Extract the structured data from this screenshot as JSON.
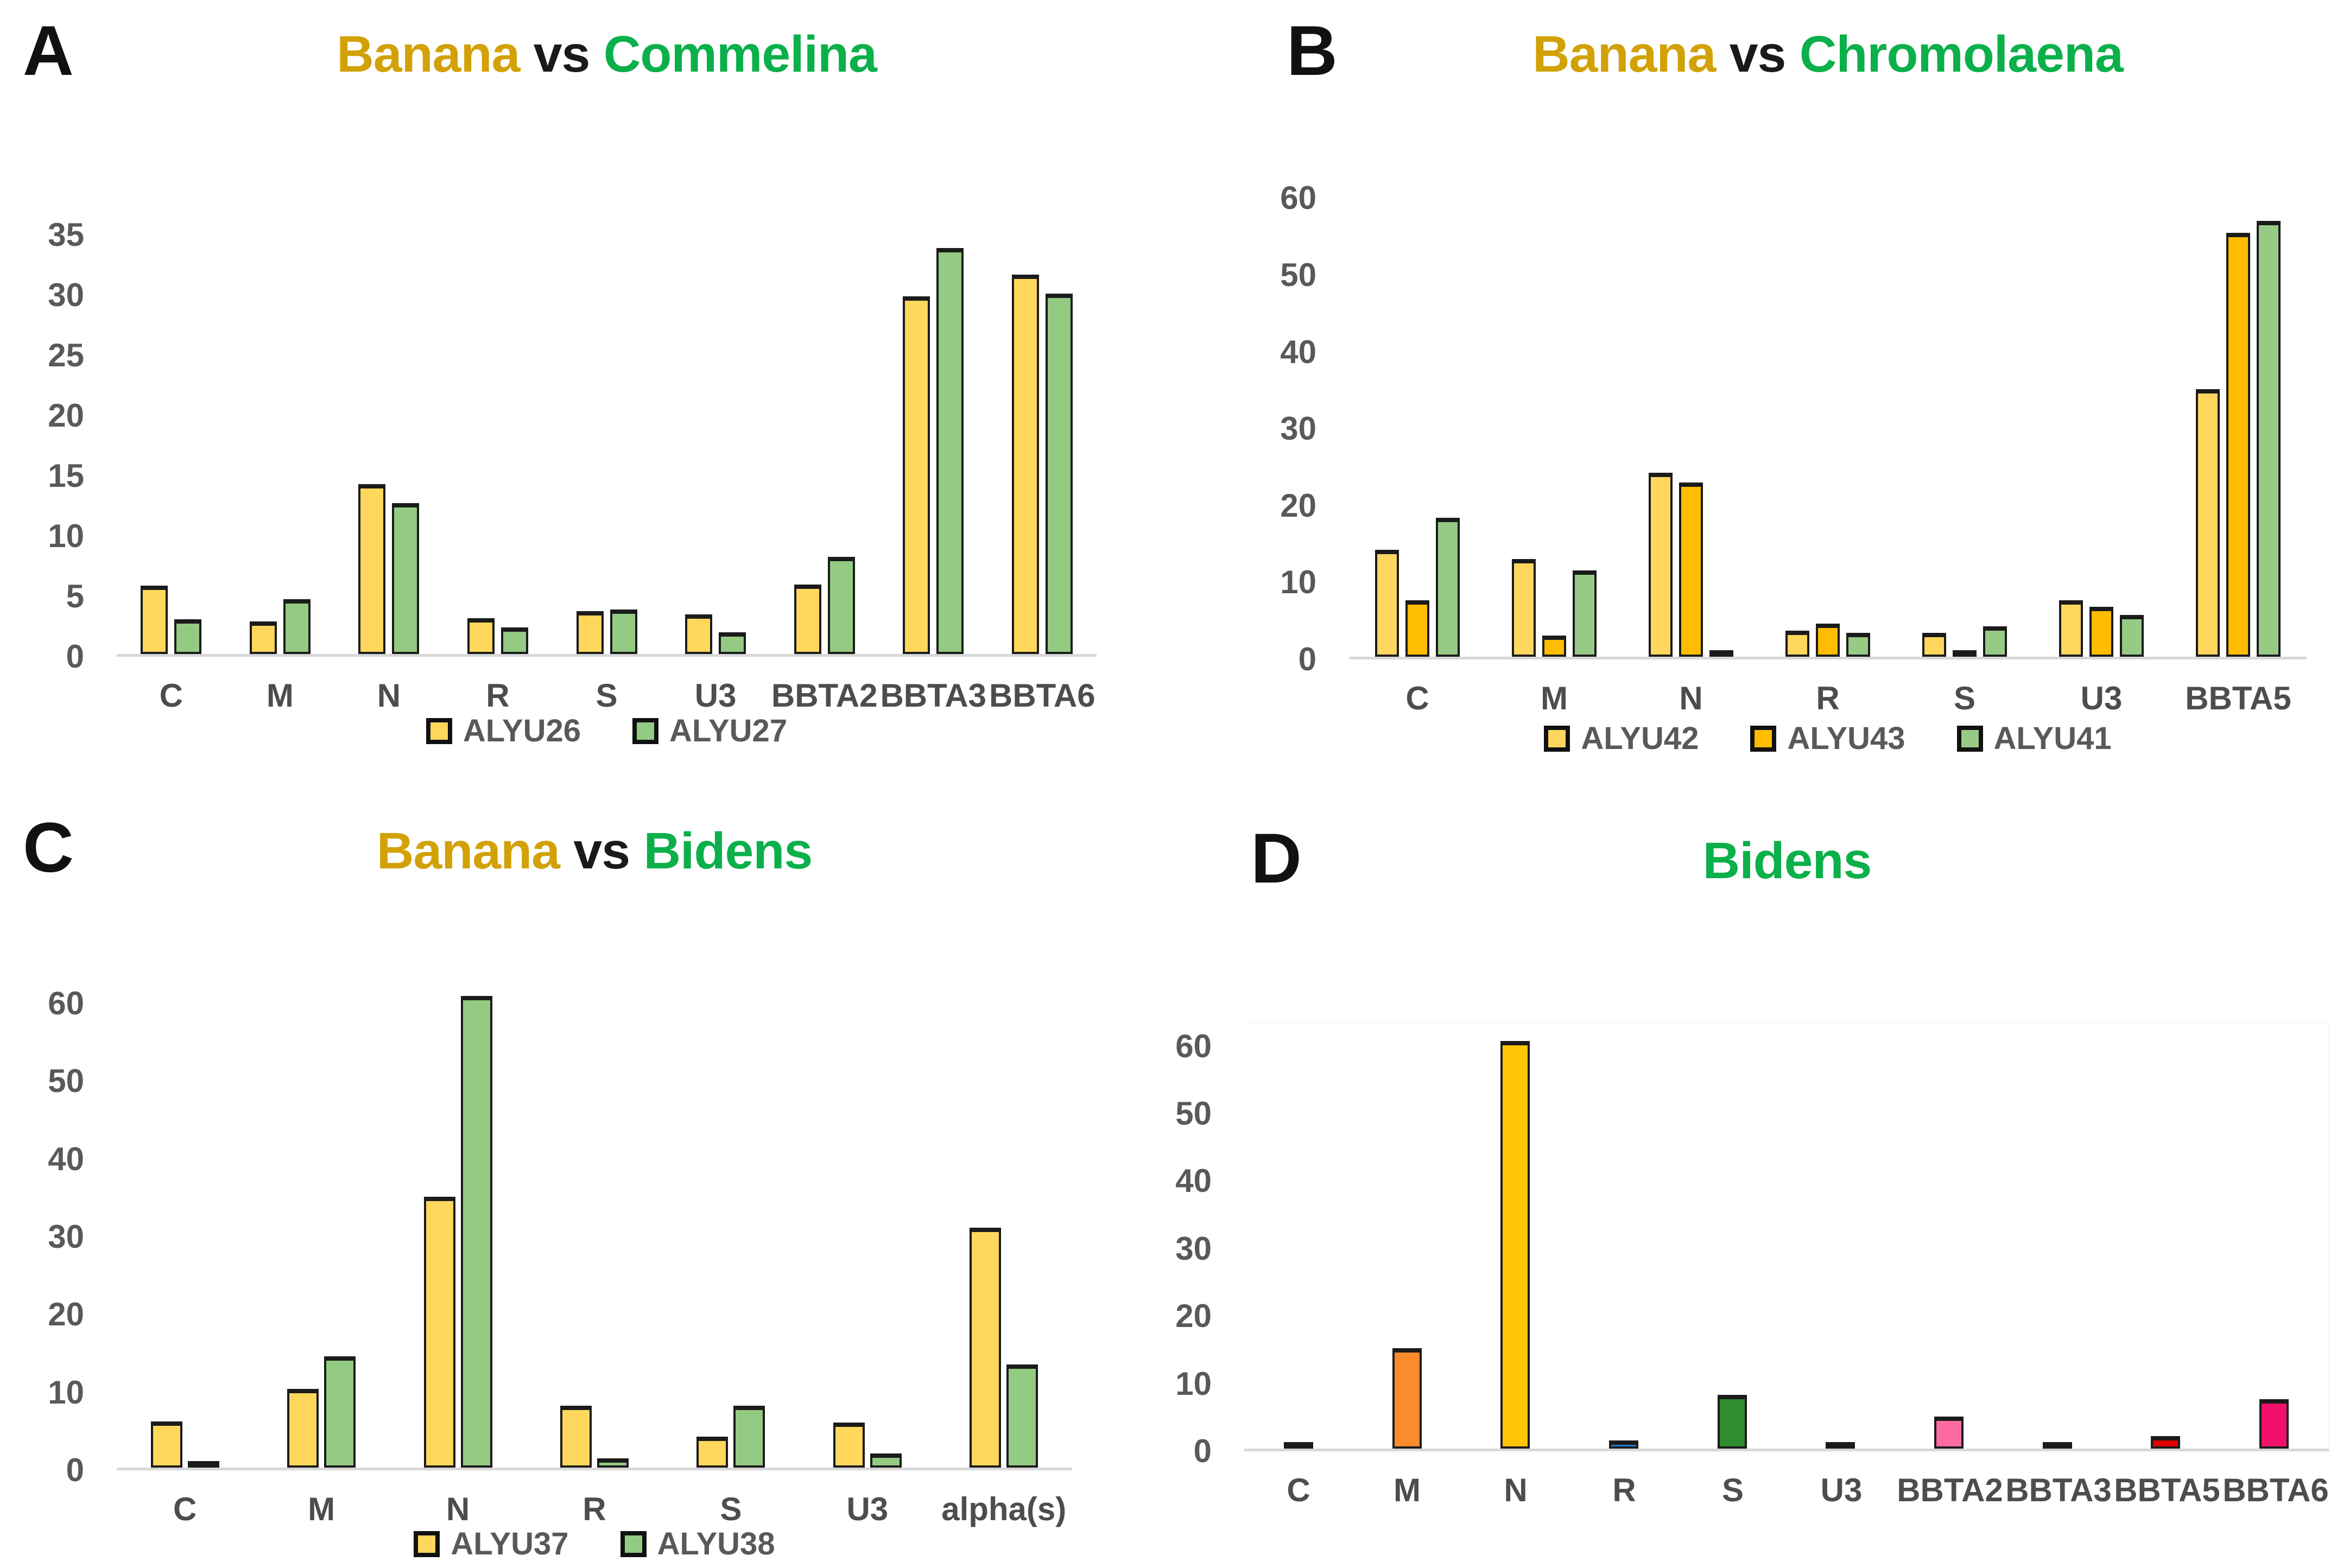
{
  "figure": {
    "background": "#FFFFFF",
    "axis_text_color": "#595959",
    "bar_outline_color": "#1B1B1B",
    "baseline_color": "#D8D8D8"
  },
  "panels": [
    {
      "label": "A",
      "title_parts": [
        {
          "text": "Banana",
          "color": "#D2A106"
        },
        {
          "text": " vs ",
          "color": "#1A1A1A"
        },
        {
          "text": "Commelina",
          "color": "#0CB04A"
        }
      ],
      "chart_data": {
        "type": "bar",
        "title": "Banana vs Commelina",
        "categories": [
          "C",
          "M",
          "N",
          "R",
          "S",
          "U3",
          "BBTA2",
          "BBTA3",
          "BBTA6"
        ],
        "series": [
          {
            "name": "ALYU26",
            "color": "#FFD75C",
            "values": [
              5.7,
              2.7,
              14.2,
              3.0,
              3.6,
              3.3,
              5.8,
              29.9,
              31.7
            ]
          },
          {
            "name": "ALYU27",
            "color": "#93CB82",
            "values": [
              2.9,
              4.6,
              12.6,
              2.2,
              3.7,
              1.8,
              8.1,
              33.9,
              30.1
            ]
          }
        ],
        "xlabel": "",
        "ylabel": "",
        "ylim": [
          0,
          35
        ],
        "ytick_step": 5,
        "y_draw_max": 36.5,
        "grid": false,
        "show_legend": true,
        "legend_position": "bottom"
      }
    },
    {
      "label": "B",
      "title_parts": [
        {
          "text": "Banana",
          "color": "#D2A106"
        },
        {
          "text": " vs ",
          "color": "#1A1A1A"
        },
        {
          "text": "Chromolaena",
          "color": "#0CB04A"
        }
      ],
      "chart_data": {
        "type": "bar",
        "title": "Banana vs Chromolaena",
        "categories": [
          "C",
          "M",
          "N",
          "R",
          "S",
          "U3",
          "BBTA5"
        ],
        "series": [
          {
            "name": "ALYU42",
            "color": "#FFD65E",
            "values": [
              14.0,
              12.8,
              24.1,
              3.4,
              3.1,
              7.4,
              35.0
            ]
          },
          {
            "name": "ALYU43",
            "color": "#FFBC00",
            "values": [
              7.4,
              2.8,
              22.8,
              4.3,
              0.8,
              6.5,
              55.5
            ]
          },
          {
            "name": "ALYU41",
            "color": "#97CB85",
            "values": [
              18.2,
              11.3,
              0.8,
              3.1,
              4.0,
              5.5,
              57.0
            ]
          }
        ],
        "xlabel": "",
        "ylabel": "",
        "ylim": [
          0,
          60
        ],
        "ytick_step": 10,
        "y_draw_max": 62.5,
        "grid": false,
        "show_legend": true,
        "legend_position": "bottom"
      }
    },
    {
      "label": "C",
      "title_parts": [
        {
          "text": "Banana",
          "color": "#D2A106"
        },
        {
          "text": " vs ",
          "color": "#1A1A1A"
        },
        {
          "text": "Bidens",
          "color": "#0CB04A"
        }
      ],
      "chart_data": {
        "type": "bar",
        "title": "Banana vs Bidens",
        "categories": [
          "C",
          "M",
          "N",
          "R",
          "S",
          "U3",
          "alpha(s)"
        ],
        "series": [
          {
            "name": "ALYU37",
            "color": "#FFD75C",
            "values": [
              6.0,
              10.2,
              35.0,
              8.0,
              4.0,
              5.8,
              31.0
            ]
          },
          {
            "name": "ALYU38",
            "color": "#93CB82",
            "values": [
              0.7,
              14.4,
              61.0,
              1.2,
              8.0,
              1.8,
              13.3
            ]
          }
        ],
        "xlabel": "",
        "ylabel": "",
        "ylim": [
          0,
          60
        ],
        "ytick_step": 10,
        "y_draw_max": 63.5,
        "grid": false,
        "show_legend": true,
        "legend_position": "bottom"
      }
    },
    {
      "label": "D",
      "title_parts": [
        {
          "text": "Bidens",
          "color": "#0CB04A"
        }
      ],
      "chart_data": {
        "type": "bar",
        "title": "Bidens",
        "categories": [
          "C",
          "M",
          "N",
          "R",
          "S",
          "U3",
          "BBTA2",
          "BBTA3",
          "BBTA5",
          "BBTA6"
        ],
        "series": [
          {
            "name": "Bidens",
            "values": [
              0.6,
              15.0,
              61.0,
              1.2,
              8.0,
              0.4,
              4.8,
              0.9,
              1.9,
              7.4
            ],
            "colors": [
              "#EDEDED",
              "#FB8B2D",
              "#FFC403",
              "#1B7FD4",
              "#2F8C2F",
              "#F7F7F7",
              "#FB6BA2",
              "#EE0D0D",
              "#E00000",
              "#F2106B"
            ]
          }
        ],
        "xlabel": "",
        "ylabel": "",
        "ylim": [
          0,
          60
        ],
        "ytick_step": 10,
        "y_draw_max": 63.5,
        "grid": false,
        "show_legend": false,
        "legend_position": "none"
      }
    }
  ]
}
